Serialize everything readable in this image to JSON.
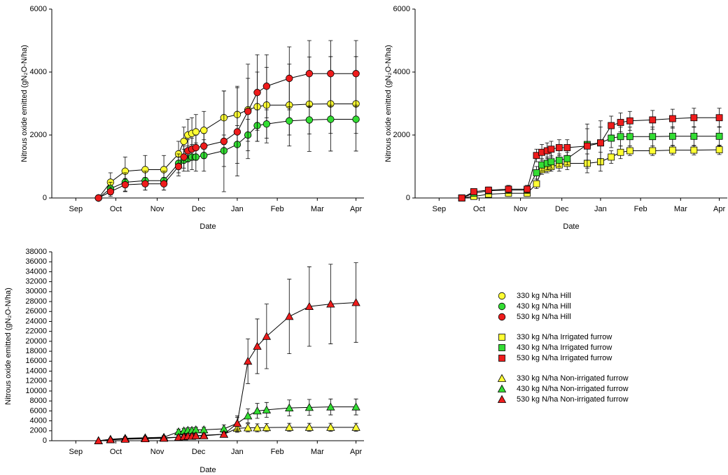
{
  "chart_data": [
    {
      "type": "line",
      "marker": "circle",
      "xlabel": "Date",
      "ylabel": "Nitrous oxide emitted (gN₂O-N/ha)",
      "xlim": [
        0,
        234
      ],
      "ylim": [
        0,
        6000
      ],
      "yticks": [
        0,
        2000,
        4000,
        6000
      ],
      "xticks": [
        {
          "value": 18,
          "label": "Sep"
        },
        {
          "value": 48,
          "label": "Oct"
        },
        {
          "value": 79,
          "label": "Nov"
        },
        {
          "value": 110,
          "label": "Dec"
        },
        {
          "value": 139,
          "label": "Jan"
        },
        {
          "value": 169,
          "label": "Feb"
        },
        {
          "value": 199,
          "label": "Mar"
        },
        {
          "value": 228,
          "label": "Apr"
        }
      ],
      "x": [
        35,
        44,
        55,
        70,
        84,
        95,
        99,
        102,
        105,
        108,
        114,
        129,
        139,
        147,
        154,
        161,
        178,
        193,
        209,
        228
      ],
      "series": [
        {
          "name": "330 kg N/ha Hill",
          "color": "#ffff33",
          "values": [
            0,
            500,
            850,
            900,
            900,
            1400,
            1800,
            2000,
            2050,
            2100,
            2150,
            2550,
            2650,
            2800,
            2900,
            2950,
            2950,
            2980,
            2990,
            2990
          ],
          "errors": [
            0,
            300,
            450,
            450,
            450,
            400,
            450,
            500,
            500,
            550,
            600,
            850,
            900,
            1000,
            1100,
            1200,
            1300,
            1500,
            1500,
            1500
          ]
        },
        {
          "name": "430 kg N/ha Hill",
          "color": "#33dd33",
          "values": [
            0,
            300,
            500,
            550,
            550,
            1100,
            1200,
            1250,
            1300,
            1300,
            1350,
            1500,
            1700,
            2000,
            2300,
            2350,
            2450,
            2480,
            2500,
            2500
          ],
          "errors": [
            0,
            200,
            300,
            300,
            300,
            300,
            350,
            400,
            400,
            450,
            500,
            500,
            600,
            500,
            500,
            450,
            450,
            450,
            450,
            450
          ]
        },
        {
          "name": "530 kg N/ha Hill",
          "color": "#ee1c1c",
          "values": [
            0,
            200,
            420,
            450,
            450,
            1000,
            1300,
            1500,
            1550,
            1600,
            1650,
            1800,
            2100,
            2750,
            3350,
            3550,
            3800,
            3950,
            3950,
            3950
          ],
          "errors": [
            0,
            150,
            200,
            200,
            200,
            300,
            350,
            350,
            350,
            400,
            400,
            1600,
            1400,
            1500,
            1200,
            1000,
            1000,
            1050,
            1050,
            1050
          ]
        }
      ]
    },
    {
      "type": "line",
      "marker": "square",
      "xlabel": "Date",
      "ylabel": "Nitrous oxide emitted (gN₂O-N/ha)",
      "xlim": [
        0,
        234
      ],
      "ylim": [
        0,
        6000
      ],
      "yticks": [
        0,
        2000,
        4000,
        6000
      ],
      "xticks": [
        {
          "value": 18,
          "label": "Sep"
        },
        {
          "value": 48,
          "label": "Oct"
        },
        {
          "value": 79,
          "label": "Nov"
        },
        {
          "value": 110,
          "label": "Dec"
        },
        {
          "value": 139,
          "label": "Jan"
        },
        {
          "value": 169,
          "label": "Feb"
        },
        {
          "value": 199,
          "label": "Mar"
        },
        {
          "value": 228,
          "label": "Apr"
        }
      ],
      "x": [
        35,
        44,
        55,
        70,
        84,
        91,
        95,
        99,
        102,
        108,
        114,
        129,
        139,
        147,
        154,
        161,
        178,
        193,
        209,
        228
      ],
      "series": [
        {
          "name": "330 kg N/ha Irrigated furrow",
          "color": "#ffff33",
          "values": [
            0,
            50,
            120,
            150,
            150,
            450,
            900,
            950,
            1000,
            1050,
            1100,
            1100,
            1150,
            1300,
            1450,
            1500,
            1500,
            1520,
            1520,
            1530
          ],
          "errors": [
            0,
            50,
            80,
            100,
            100,
            150,
            150,
            150,
            150,
            200,
            200,
            300,
            300,
            200,
            200,
            150,
            150,
            150,
            150,
            150
          ]
        },
        {
          "name": "430 kg N/ha Irrigated furrow",
          "color": "#33dd33",
          "values": [
            0,
            150,
            230,
            250,
            250,
            800,
            1050,
            1100,
            1150,
            1200,
            1250,
            1700,
            1750,
            1900,
            1950,
            1950,
            1950,
            1960,
            1960,
            1960
          ],
          "errors": [
            0,
            80,
            100,
            100,
            100,
            200,
            200,
            200,
            200,
            200,
            200,
            500,
            500,
            300,
            300,
            300,
            300,
            300,
            300,
            300
          ]
        },
        {
          "name": "530 kg N/ha Irrigated furrow",
          "color": "#ee1c1c",
          "values": [
            0,
            200,
            250,
            280,
            280,
            1350,
            1450,
            1500,
            1550,
            1600,
            1600,
            1650,
            1750,
            2300,
            2400,
            2450,
            2480,
            2520,
            2550,
            2550
          ],
          "errors": [
            0,
            80,
            100,
            120,
            120,
            200,
            250,
            250,
            250,
            250,
            250,
            700,
            700,
            300,
            300,
            300,
            300,
            300,
            300,
            300
          ]
        }
      ]
    },
    {
      "type": "line",
      "marker": "triangle",
      "xlabel": "Date",
      "ylabel": "Nitrous oxide emitted (gN₂O-N/ha)",
      "xlim": [
        0,
        234
      ],
      "ylim": [
        0,
        38000
      ],
      "yticks": [
        0,
        2000,
        4000,
        6000,
        8000,
        10000,
        12000,
        14000,
        16000,
        18000,
        20000,
        22000,
        24000,
        26000,
        28000,
        30000,
        32000,
        34000,
        36000,
        38000
      ],
      "xticks": [
        {
          "value": 18,
          "label": "Sep"
        },
        {
          "value": 48,
          "label": "Oct"
        },
        {
          "value": 79,
          "label": "Nov"
        },
        {
          "value": 110,
          "label": "Dec"
        },
        {
          "value": 139,
          "label": "Jan"
        },
        {
          "value": 169,
          "label": "Feb"
        },
        {
          "value": 199,
          "label": "Mar"
        },
        {
          "value": 228,
          "label": "Apr"
        }
      ],
      "x": [
        35,
        44,
        55,
        70,
        84,
        95,
        99,
        102,
        105,
        108,
        114,
        129,
        139,
        147,
        154,
        161,
        178,
        193,
        209,
        228
      ],
      "series": [
        {
          "name": "330 kg N/ha Non-irrigated furrow",
          "color": "#ffff33",
          "values": [
            0,
            200,
            400,
            500,
            600,
            700,
            900,
            900,
            1000,
            1000,
            1100,
            1300,
            2500,
            2600,
            2600,
            2650,
            2700,
            2700,
            2700,
            2700
          ],
          "errors": [
            0,
            100,
            150,
            200,
            200,
            300,
            300,
            300,
            300,
            300,
            300,
            400,
            800,
            800,
            800,
            800,
            800,
            800,
            800,
            800
          ]
        },
        {
          "name": "430 kg N/ha Non-irrigated furrow",
          "color": "#33dd33",
          "values": [
            0,
            300,
            500,
            600,
            700,
            1800,
            2000,
            2100,
            2100,
            2200,
            2200,
            2400,
            3500,
            5000,
            6000,
            6200,
            6600,
            6700,
            6800,
            6800
          ],
          "errors": [
            0,
            200,
            300,
            300,
            300,
            500,
            500,
            500,
            500,
            500,
            500,
            800,
            1200,
            1400,
            1500,
            1500,
            1600,
            1600,
            1600,
            1600
          ]
        },
        {
          "name": "530 kg N/ha Non-irrigated furrow",
          "color": "#ee1c1c",
          "values": [
            0,
            200,
            300,
            400,
            500,
            700,
            800,
            900,
            900,
            1000,
            1000,
            1300,
            3500,
            16000,
            19000,
            21000,
            25000,
            27000,
            27500,
            27800
          ],
          "errors": [
            0,
            100,
            150,
            200,
            200,
            300,
            300,
            300,
            300,
            300,
            300,
            500,
            1500,
            4500,
            5500,
            6500,
            7500,
            8000,
            8000,
            8000
          ]
        }
      ]
    }
  ]
}
